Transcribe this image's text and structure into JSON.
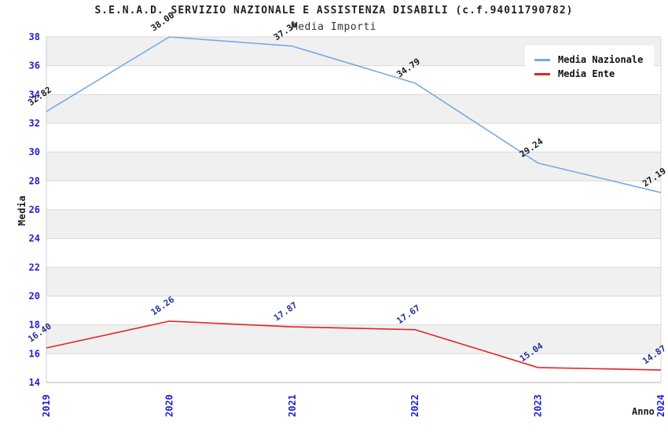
{
  "chart_data": {
    "type": "line",
    "title": "S.E.N.A.D. SERVIZIO NAZIONALE E ASSISTENZA DISABILI (c.f.94011790782)",
    "subtitle": "Media Importi",
    "xlabel": "Anno",
    "ylabel": "Media",
    "categories": [
      "2019",
      "2020",
      "2021",
      "2022",
      "2023",
      "2024"
    ],
    "series": [
      {
        "name": "Media Nazionale",
        "color": "#78aae1",
        "label_color": "#1a1a1a",
        "values": [
          32.82,
          38.0,
          37.36,
          34.79,
          29.24,
          27.19
        ],
        "labels": [
          "32.82",
          "38.00",
          "37.36",
          "34.79",
          "29.24",
          "27.19"
        ]
      },
      {
        "name": "Media Ente",
        "color": "#e62222",
        "label_color": "#223399",
        "values": [
          16.4,
          18.26,
          17.87,
          17.67,
          15.04,
          14.87
        ],
        "labels": [
          "16.40",
          "18.26",
          "17.87",
          "17.67",
          "15.04",
          "14.87"
        ]
      }
    ],
    "ylim": [
      14,
      38
    ],
    "yticks": [
      14,
      16,
      18,
      20,
      22,
      24,
      26,
      28,
      30,
      32,
      34,
      36,
      38
    ],
    "grid": "horizontal-bands-alternating",
    "legend_position": "top-right",
    "colors": {
      "tick_label": "#1f1fd1",
      "band_gray": "#f0f0f0",
      "band_white": "#ffffff",
      "gridline": "#d9d9d9",
      "spine_left": "#cccccc",
      "spine_bottom": "#b5b5b5",
      "spine_right": "#d9d9d9"
    }
  }
}
